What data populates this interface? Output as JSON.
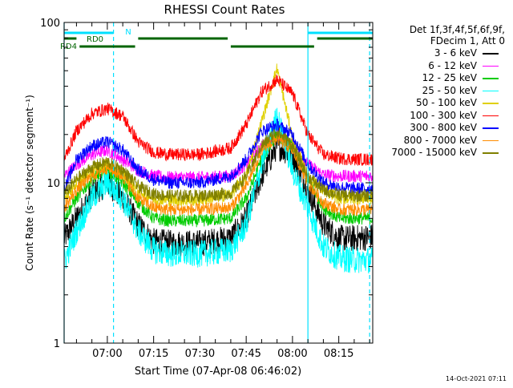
{
  "chart_data": {
    "type": "line",
    "title": "RHESSI Count Rates",
    "xlabel": "Start Time (07-Apr-08 06:46:02)",
    "ylabel": "Count Rate (s⁻¹ detector segment⁻¹)",
    "yscale": "log",
    "ylim": [
      1,
      100
    ],
    "y_tick_labels": [
      "1",
      "10",
      "100"
    ],
    "x_range_minutes": [
      "06:46",
      "08:26"
    ],
    "x_tick_labels": [
      "07:00",
      "07:15",
      "07:30",
      "07:45",
      "08:00",
      "08:15"
    ],
    "legend_header": [
      "Det 1f,3f,4f,5f,6f,9f,",
      "FDecim 1, Att 0"
    ],
    "legend_placement": "right",
    "grid": false,
    "series": [
      {
        "name": "3 - 6 keV",
        "color": "#000000",
        "x": [
          "06:46",
          "06:50",
          "06:55",
          "07:00",
          "07:05",
          "07:10",
          "07:15",
          "07:20",
          "07:30",
          "07:40",
          "07:45",
          "07:50",
          "07:55",
          "08:00",
          "08:05",
          "08:10",
          "08:15",
          "08:20",
          "08:26"
        ],
        "y": [
          4.5,
          6,
          8.5,
          10,
          8,
          5.5,
          4.3,
          4.2,
          4.2,
          4.5,
          6,
          11,
          17,
          15,
          9,
          5.5,
          4.5,
          4.5,
          4.6
        ]
      },
      {
        "name": "6 - 12 keV",
        "color": "#ff00ff",
        "x": [
          "06:46",
          "06:50",
          "06:55",
          "07:00",
          "07:05",
          "07:10",
          "07:15",
          "07:20",
          "07:30",
          "07:40",
          "07:45",
          "07:50",
          "07:55",
          "08:00",
          "08:05",
          "08:10",
          "08:15",
          "08:20",
          "08:26"
        ],
        "y": [
          11,
          13,
          15,
          16,
          14,
          12,
          11,
          10.8,
          10.8,
          11,
          13,
          17,
          20,
          17,
          13,
          11.2,
          11,
          11,
          11
        ]
      },
      {
        "name": "12 - 25 keV",
        "color": "#00cc00",
        "x": [
          "06:46",
          "06:50",
          "06:55",
          "07:00",
          "07:05",
          "07:10",
          "07:15",
          "07:20",
          "07:30",
          "07:40",
          "07:45",
          "07:50",
          "07:55",
          "08:00",
          "08:05",
          "08:10",
          "08:15",
          "08:20",
          "08:26"
        ],
        "y": [
          6,
          8,
          10.5,
          12,
          10,
          7.5,
          6,
          5.8,
          5.8,
          6,
          8,
          14,
          20,
          17,
          10.5,
          7,
          6,
          6,
          6
        ]
      },
      {
        "name": "25 - 50 keV",
        "color": "#00ffff",
        "x": [
          "06:46",
          "06:50",
          "06:55",
          "07:00",
          "07:05",
          "07:10",
          "07:15",
          "07:20",
          "07:30",
          "07:40",
          "07:45",
          "07:50",
          "07:55",
          "08:00",
          "08:05",
          "08:10",
          "08:15",
          "08:20",
          "08:26"
        ],
        "y": [
          3.2,
          5,
          8,
          10,
          8,
          5,
          3.8,
          3.6,
          3.6,
          3.8,
          5.5,
          13,
          26,
          12,
          7,
          4,
          3.4,
          3.3,
          3.3
        ]
      },
      {
        "name": "50 - 100 keV",
        "color": "#e0d000",
        "x": [
          "06:46",
          "06:50",
          "06:55",
          "07:00",
          "07:05",
          "07:10",
          "07:15",
          "07:20",
          "07:30",
          "07:40",
          "07:45",
          "07:50",
          "07:55",
          "08:00",
          "08:05",
          "08:10",
          "08:15",
          "08:20",
          "08:26"
        ],
        "y": [
          8,
          10,
          12,
          13,
          11.5,
          9,
          8,
          7.8,
          7.8,
          8.5,
          11,
          24,
          52,
          19,
          11,
          9,
          8,
          8,
          8
        ]
      },
      {
        "name": "100 - 300 keV",
        "color": "#ff0000",
        "x": [
          "06:46",
          "06:50",
          "06:55",
          "07:00",
          "07:05",
          "07:10",
          "07:15",
          "07:20",
          "07:30",
          "07:40",
          "07:45",
          "07:50",
          "07:55",
          "08:00",
          "08:05",
          "08:10",
          "08:15",
          "08:20",
          "08:26"
        ],
        "y": [
          14,
          21,
          27,
          29,
          26,
          18,
          15.5,
          15,
          15,
          16.5,
          23,
          37,
          44,
          36,
          20,
          15,
          14.2,
          14,
          14
        ]
      },
      {
        "name": "300 - 800 keV",
        "color": "#0000ff",
        "x": [
          "06:46",
          "06:50",
          "06:55",
          "07:00",
          "07:05",
          "07:10",
          "07:15",
          "07:20",
          "07:30",
          "07:40",
          "07:45",
          "07:50",
          "07:55",
          "08:00",
          "08:05",
          "08:10",
          "08:15",
          "08:20",
          "08:26"
        ],
        "y": [
          9,
          14,
          17,
          18,
          16,
          12,
          10.5,
          10,
          10,
          11,
          14,
          21,
          23,
          20,
          13,
          10,
          9.4,
          9.2,
          9.2
        ]
      },
      {
        "name": "800 - 7000 keV",
        "color": "#ff8c00",
        "x": [
          "06:46",
          "06:50",
          "06:55",
          "07:00",
          "07:05",
          "07:10",
          "07:15",
          "07:20",
          "07:30",
          "07:40",
          "07:45",
          "07:50",
          "07:55",
          "08:00",
          "08:05",
          "08:10",
          "08:15",
          "08:20",
          "08:26"
        ],
        "y": [
          7,
          9,
          11,
          12.5,
          11,
          8,
          7,
          6.8,
          6.8,
          7,
          9.5,
          16,
          19,
          16,
          10,
          7.5,
          6.8,
          6.8,
          6.8
        ]
      },
      {
        "name": "7000 - 15000 keV",
        "color": "#808000",
        "x": [
          "06:46",
          "06:50",
          "06:55",
          "07:00",
          "07:05",
          "07:10",
          "07:15",
          "07:20",
          "07:30",
          "07:40",
          "07:45",
          "07:50",
          "07:55",
          "08:00",
          "08:05",
          "08:10",
          "08:15",
          "08:20",
          "08:26"
        ],
        "y": [
          8.5,
          10.5,
          12.5,
          13.5,
          12,
          9.5,
          8.5,
          8.3,
          8.3,
          8.6,
          11,
          17,
          21,
          17,
          11,
          9,
          8.4,
          8.3,
          8.3
        ]
      }
    ],
    "vertical_markers": [
      {
        "time": "06:46",
        "color": "#00e0ff",
        "style": "solid"
      },
      {
        "time": "07:02",
        "color": "#00e0ff",
        "style": "dashed"
      },
      {
        "time": "08:05",
        "color": "#00e0ff",
        "style": "solid"
      },
      {
        "time": "08:25",
        "color": "#00e0ff",
        "style": "dashed"
      }
    ],
    "state_bars": [
      {
        "label": "N",
        "color": "#00e0ff",
        "level": 1,
        "segments": [
          [
            "06:46",
            "07:02"
          ],
          [
            "08:05",
            "08:26"
          ]
        ]
      },
      {
        "label": "RD0",
        "color": "#006400",
        "level": 2,
        "segments": [
          [
            "06:46",
            "06:50"
          ],
          [
            "07:10",
            "07:39"
          ],
          [
            "08:08",
            "08:26"
          ]
        ]
      },
      {
        "label": "RD4",
        "color": "#006400",
        "level": 3,
        "segments": [
          [
            "06:51",
            "07:09"
          ],
          [
            "07:40",
            "08:07"
          ]
        ]
      }
    ]
  },
  "footer": {
    "timestamp": "14-Oct-2021 07:11"
  }
}
